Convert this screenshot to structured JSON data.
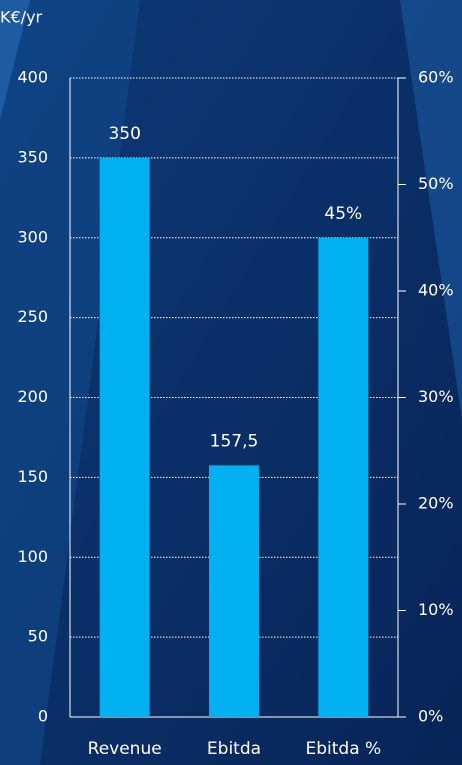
{
  "chart_data": {
    "type": "bar",
    "ylabel": "K€/yr",
    "categories": [
      "Revenue",
      "Ebitda",
      "Ebitda %"
    ],
    "series": [
      {
        "color": "#00b0f0",
        "values": [
          350,
          157.5,
          null
        ],
        "value_labels": [
          "350",
          "157,5",
          null
        ]
      },
      {
        "color": "#00b0f0",
        "axis": "y2",
        "values": [
          null,
          null,
          45
        ],
        "value_labels": [
          null,
          null,
          "45%"
        ]
      }
    ],
    "ylim": [
      0,
      400
    ],
    "yticks": [
      0,
      50,
      100,
      150,
      200,
      250,
      300,
      350,
      400
    ],
    "y2lim": [
      0,
      60
    ],
    "y2ticks": [
      {
        "value": 0,
        "label": "0%"
      },
      {
        "value": 10,
        "label": "10%"
      },
      {
        "value": 20,
        "label": "20%"
      },
      {
        "value": 30,
        "label": "30%"
      },
      {
        "value": 40,
        "label": "40%"
      },
      {
        "value": 50,
        "label": "50%"
      },
      {
        "value": 60,
        "label": "60%"
      }
    ],
    "grid": true
  }
}
